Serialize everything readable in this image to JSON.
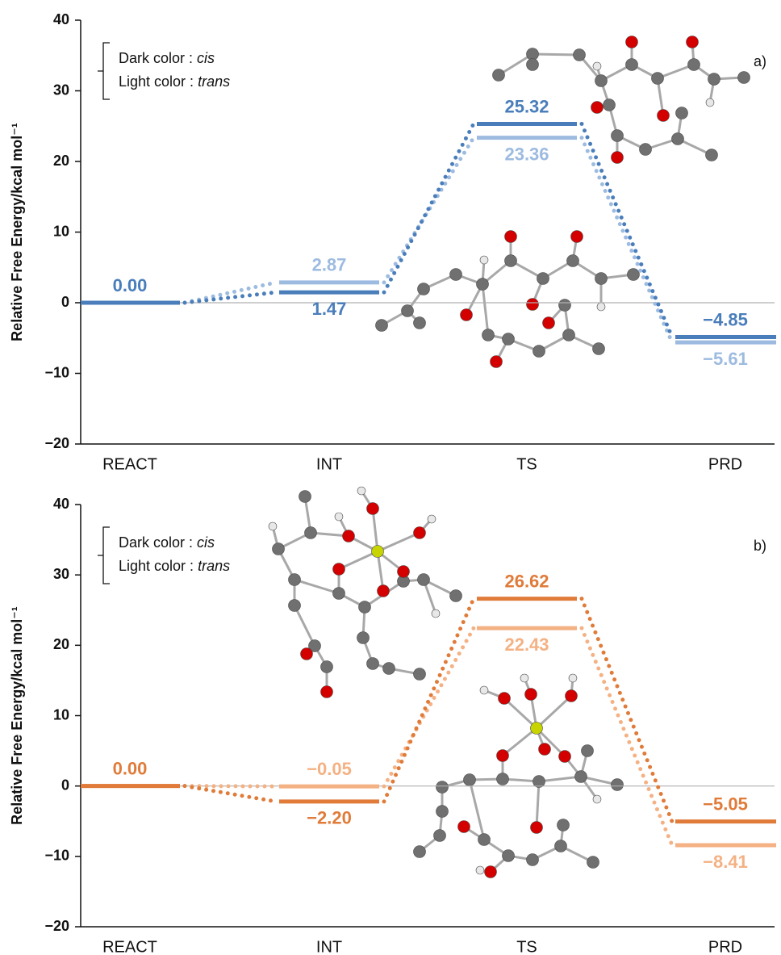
{
  "chart_data": [
    {
      "type": "energy-profile",
      "panel_label": "a)",
      "ylabel": "Relative Free Energy/kcal mol⁻¹",
      "categories": [
        "REACT",
        "INT",
        "TS",
        "PRD"
      ],
      "legend_prefixes": [
        "Dark color :",
        "Light color :"
      ],
      "series": [
        {
          "name": "cis",
          "color": "#4a7ebb",
          "values": [
            0,
            1.47,
            25.32,
            -4.85
          ],
          "value_labels": [
            "0.00",
            "1.47",
            "25.32",
            "−4.85"
          ]
        },
        {
          "name": "trans",
          "color": "#9dbbe0",
          "values": [
            0,
            2.87,
            23.36,
            -5.61
          ],
          "value_labels": [
            null,
            "2.87",
            "23.36",
            "−5.61"
          ]
        }
      ],
      "ylim": [
        -20,
        40
      ],
      "yticks": [
        {
          "value": -20,
          "label": "−20"
        },
        {
          "value": -10,
          "label": "−10"
        },
        0,
        10,
        20,
        30,
        40
      ]
    },
    {
      "type": "energy-profile",
      "panel_label": "b)",
      "ylabel": "Relative Free Energy/kcal mol⁻¹",
      "categories": [
        "REACT",
        "INT",
        "TS",
        "PRD"
      ],
      "legend_prefixes": [
        "Dark color :",
        "Light color :"
      ],
      "series": [
        {
          "name": "cis",
          "color": "#e07b39",
          "values": [
            0,
            -2.2,
            26.62,
            -5.05
          ],
          "value_labels": [
            "0.00",
            "−2.20",
            "26.62",
            "−5.05"
          ]
        },
        {
          "name": "trans",
          "color": "#f4b183",
          "values": [
            0,
            -0.05,
            22.43,
            -8.41
          ],
          "value_labels": [
            null,
            "−0.05",
            "22.43",
            "−8.41"
          ]
        }
      ],
      "ylim": [
        -20,
        40
      ],
      "yticks": [
        {
          "value": -20,
          "label": "−20"
        },
        {
          "value": -10,
          "label": "−10"
        },
        0,
        10,
        20,
        30,
        40
      ]
    }
  ]
}
